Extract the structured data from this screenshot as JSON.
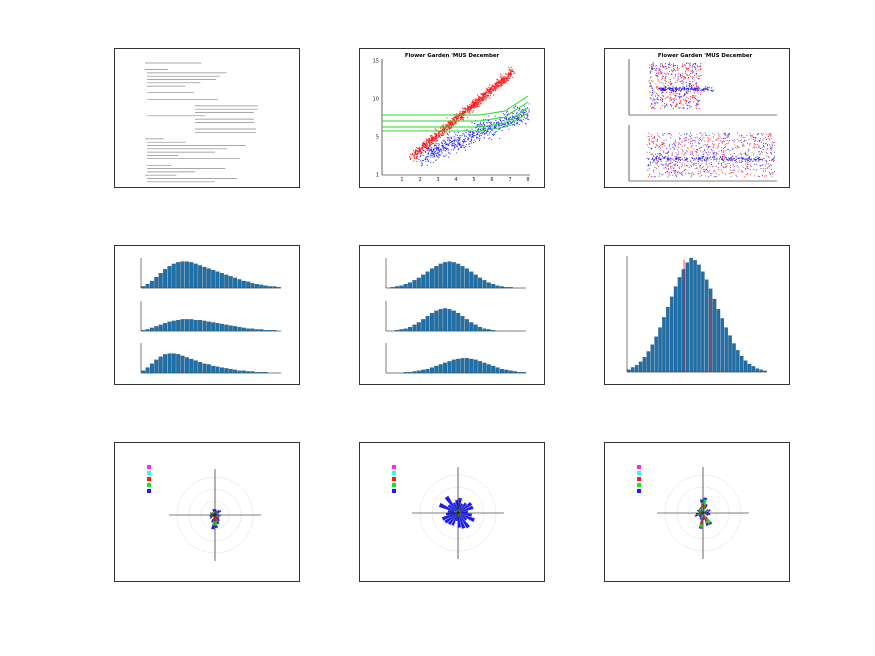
{
  "colors": {
    "bar": "#1f6fa8",
    "bar_outline": "#0b3552",
    "red": "#ff1a1a",
    "blue": "#1a1aff",
    "green": "#22dd22",
    "magenta": "#ff22ff",
    "cyan": "#22ffff"
  },
  "panels": [
    {
      "id": "text-summary",
      "type": "text"
    },
    {
      "id": "scatter",
      "type": "scatter",
      "title": "Flower Garden 'MUS December",
      "yticks": [
        "1",
        "5",
        "10",
        "15"
      ],
      "xticks": [
        "1",
        "2",
        "3",
        "4",
        "5",
        "6",
        "7",
        "8"
      ]
    },
    {
      "id": "dual-timeseries",
      "type": "scatter",
      "title": "Flower Garden 'MUS December"
    },
    {
      "id": "hist-stack-1",
      "type": "bar"
    },
    {
      "id": "hist-stack-2",
      "type": "bar"
    },
    {
      "id": "hist-single",
      "type": "bar"
    },
    {
      "id": "rose-1",
      "type": "rose"
    },
    {
      "id": "rose-2",
      "type": "rose"
    },
    {
      "id": "rose-3",
      "type": "rose"
    }
  ],
  "chart_data": [
    {
      "type": "table",
      "title": ""
    },
    {
      "type": "scatter",
      "title": "Flower Garden 'MUS December",
      "xlabel": "",
      "ylabel": "",
      "xlim": [
        0,
        8
      ],
      "ylim": [
        0,
        16
      ],
      "series": [
        {
          "name": "",
          "color": "red"
        },
        {
          "name": "",
          "color": "blue"
        }
      ]
    },
    {
      "type": "scatter",
      "title": "Flower Garden 'MUS December",
      "xlim": [
        0,
        8
      ]
    },
    {
      "type": "bar",
      "series": [
        {
          "values": [
            2,
            5,
            9,
            14,
            19,
            24,
            28,
            31,
            33,
            34,
            34,
            33,
            31,
            29,
            27,
            25,
            23,
            21,
            19,
            17,
            15,
            13,
            11,
            9,
            8,
            6,
            5,
            4,
            3,
            2,
            2,
            1
          ]
        },
        {
          "values": [
            1,
            2,
            4,
            6,
            8,
            10,
            12,
            13,
            14,
            15,
            15,
            15,
            14,
            14,
            13,
            12,
            11,
            10,
            9,
            8,
            7,
            6,
            5,
            4,
            3,
            3,
            2,
            2,
            1,
            1,
            1,
            0
          ]
        },
        {
          "values": [
            3,
            7,
            12,
            17,
            21,
            24,
            25,
            25,
            24,
            22,
            20,
            18,
            16,
            14,
            12,
            11,
            9,
            8,
            7,
            6,
            5,
            4,
            3,
            3,
            2,
            2,
            1,
            1,
            1,
            0,
            0,
            0
          ]
        }
      ]
    },
    {
      "type": "bar",
      "series": [
        {
          "values": [
            0,
            1,
            2,
            3,
            5,
            7,
            10,
            13,
            17,
            21,
            25,
            28,
            31,
            33,
            34,
            33,
            31,
            28,
            25,
            21,
            17,
            13,
            10,
            7,
            5,
            3,
            2,
            1,
            1,
            0,
            0,
            0
          ]
        },
        {
          "values": [
            0,
            0,
            1,
            2,
            3,
            5,
            8,
            11,
            15,
            19,
            23,
            26,
            28,
            29,
            28,
            26,
            23,
            19,
            15,
            11,
            8,
            5,
            3,
            2,
            1,
            0,
            0,
            0,
            0,
            0,
            0,
            0
          ]
        },
        {
          "values": [
            0,
            0,
            0,
            0,
            1,
            1,
            2,
            3,
            4,
            5,
            7,
            9,
            11,
            13,
            15,
            17,
            18,
            19,
            19,
            18,
            17,
            15,
            13,
            11,
            9,
            7,
            5,
            4,
            3,
            2,
            1,
            1
          ]
        }
      ]
    },
    {
      "type": "bar",
      "values": [
        2,
        4,
        6,
        9,
        13,
        18,
        24,
        31,
        39,
        48,
        57,
        66,
        75,
        83,
        90,
        96,
        100,
        98,
        94,
        88,
        81,
        73,
        64,
        55,
        47,
        39,
        32,
        25,
        19,
        14,
        10,
        7,
        5,
        3,
        2,
        1
      ]
    },
    {
      "type": "pie",
      "subtype": "rose",
      "legend": [
        {
          "color": "magenta"
        },
        {
          "color": "cyan"
        },
        {
          "color": "red"
        },
        {
          "color": "green"
        },
        {
          "color": "blue"
        }
      ]
    },
    {
      "type": "pie",
      "subtype": "rose",
      "legend": [
        {
          "color": "magenta"
        },
        {
          "color": "cyan"
        },
        {
          "color": "red"
        },
        {
          "color": "green"
        },
        {
          "color": "blue"
        }
      ]
    },
    {
      "type": "pie",
      "subtype": "rose",
      "legend": [
        {
          "color": "magenta"
        },
        {
          "color": "cyan"
        },
        {
          "color": "red"
        },
        {
          "color": "green"
        },
        {
          "color": "blue"
        }
      ]
    }
  ]
}
